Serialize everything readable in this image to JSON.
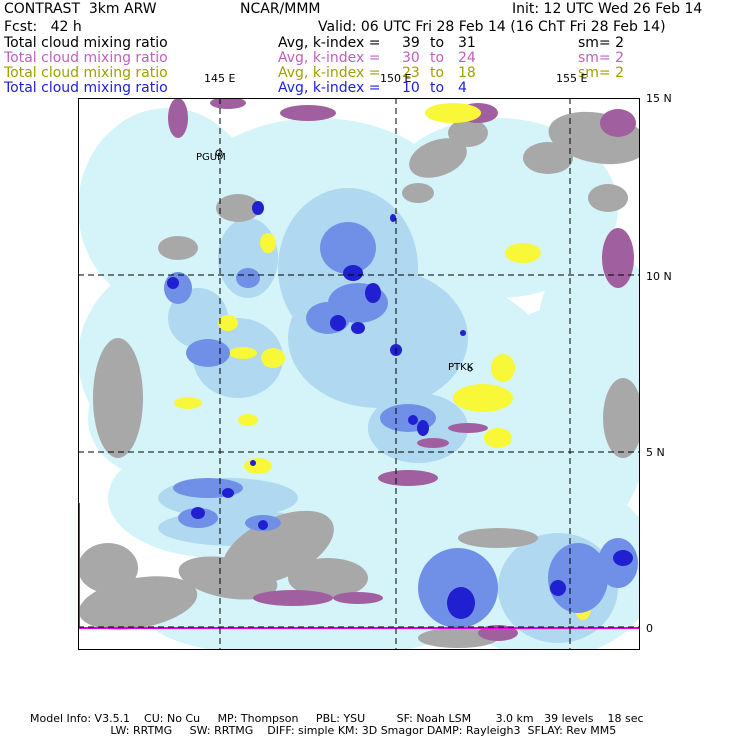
{
  "header": {
    "title": "CONTRAST  3km ARW",
    "org": "NCAR/MMM",
    "init": "Init: 12 UTC Wed 26 Feb 14",
    "fcst": "Fcst:   42 h",
    "valid": "Valid: 06 UTC Fri 28 Feb 14 (16 ChT Fri 28 Feb 14)"
  },
  "fields": [
    {
      "name": "Total cloud mixing ratio",
      "avg": "Avg, k-index =",
      "from": "39",
      "to_word": "to",
      "to": "31",
      "sm": "sm= 2",
      "color": "#000000"
    },
    {
      "name": "Total cloud mixing ratio",
      "avg": "Avg, k-index =",
      "from": "30",
      "to_word": "to",
      "to": "24",
      "sm": "sm= 2",
      "color": "#c060c0"
    },
    {
      "name": "Total cloud mixing ratio",
      "avg": "Avg, k-index =",
      "from": "23",
      "to_word": "to",
      "to": "18",
      "sm": "sm= 2",
      "color": "#a0a000"
    },
    {
      "name": "Total cloud mixing ratio",
      "avg": "Avg, k-index =",
      "from": "10",
      "to_word": "to",
      "to": "4",
      "sm": "",
      "color": "#2020e0"
    }
  ],
  "map": {
    "lon_labels": [
      "145 E",
      "150 E",
      "155 E"
    ],
    "lat_labels": [
      "15 N",
      "10 N",
      "5 N",
      "0"
    ],
    "stations": [
      "PGUM",
      "PTKK"
    ],
    "colors": {
      "light_cyan": "#d4f4fa",
      "pale_blue": "#b0d8f0",
      "mid_blue": "#7090e8",
      "dark_blue": "#2020d0",
      "gray": "#a8a8a8",
      "purple": "#a060a0",
      "yellow": "#f8f838",
      "magenta": "#e000e0"
    }
  },
  "footer": {
    "line1": "Model Info: V3.5.1    CU: No Cu     MP: Thompson     PBL: YSU         SF: Noah LSM       3.0 km   39 levels    18 sec",
    "line2": "                       LW: RRTMG     SW: RRTMG    DIFF: simple KM: 3D Smagor DAMP: Rayleigh3  SFLAY: Rev MM5"
  }
}
